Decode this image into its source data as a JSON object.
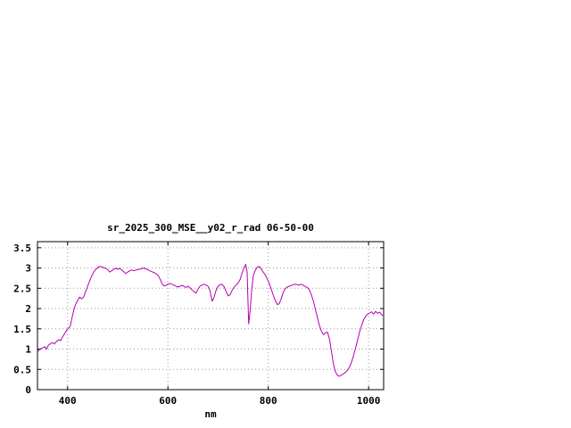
{
  "page": {
    "background_color": "#ffffff"
  },
  "chart_data": {
    "type": "line",
    "title": "sr_2025_300_MSE__y02_r_rad 06-50-00",
    "xlabel": "nm",
    "ylabel": "",
    "xlim": [
      340,
      1030
    ],
    "ylim": [
      0,
      3.65
    ],
    "xtick_values": [
      400,
      600,
      800,
      1000
    ],
    "xtick_labels": [
      "400",
      "600",
      "800",
      "1000"
    ],
    "ytick_values": [
      0,
      0.5,
      1,
      1.5,
      2,
      2.5,
      3,
      3.5
    ],
    "ytick_labels": [
      "0",
      "0.5",
      "1",
      "1.5",
      "2",
      "2.5",
      "3",
      "3.5"
    ],
    "grid": true,
    "legend_position": "none",
    "line_color": "#b400b4",
    "border_color": "#000000",
    "grid_color": "#9a9a9a",
    "series": [
      {
        "name": "sr_2025_300_MSE__y02_r_rad 06-50-00",
        "points": [
          [
            340,
            0.93
          ],
          [
            345,
            1.0
          ],
          [
            350,
            1.03
          ],
          [
            355,
            1.06
          ],
          [
            358,
            1.0
          ],
          [
            362,
            1.1
          ],
          [
            366,
            1.13
          ],
          [
            370,
            1.16
          ],
          [
            374,
            1.13
          ],
          [
            378,
            1.19
          ],
          [
            382,
            1.23
          ],
          [
            386,
            1.21
          ],
          [
            390,
            1.3
          ],
          [
            394,
            1.38
          ],
          [
            398,
            1.46
          ],
          [
            402,
            1.52
          ],
          [
            405,
            1.56
          ],
          [
            408,
            1.72
          ],
          [
            412,
            1.95
          ],
          [
            416,
            2.1
          ],
          [
            420,
            2.2
          ],
          [
            424,
            2.28
          ],
          [
            428,
            2.24
          ],
          [
            432,
            2.28
          ],
          [
            436,
            2.42
          ],
          [
            440,
            2.55
          ],
          [
            444,
            2.68
          ],
          [
            448,
            2.8
          ],
          [
            452,
            2.9
          ],
          [
            456,
            2.96
          ],
          [
            460,
            3.01
          ],
          [
            464,
            3.04
          ],
          [
            468,
            3.03
          ],
          [
            472,
            3.01
          ],
          [
            476,
            2.99
          ],
          [
            480,
            2.96
          ],
          [
            484,
            2.9
          ],
          [
            488,
            2.93
          ],
          [
            492,
            2.97
          ],
          [
            496,
            2.99
          ],
          [
            500,
            2.97
          ],
          [
            504,
            2.99
          ],
          [
            508,
            2.95
          ],
          [
            512,
            2.91
          ],
          [
            516,
            2.86
          ],
          [
            520,
            2.9
          ],
          [
            524,
            2.93
          ],
          [
            528,
            2.95
          ],
          [
            532,
            2.93
          ],
          [
            536,
            2.95
          ],
          [
            540,
            2.96
          ],
          [
            544,
            2.97
          ],
          [
            548,
            2.99
          ],
          [
            552,
            3.0
          ],
          [
            556,
            2.98
          ],
          [
            560,
            2.96
          ],
          [
            564,
            2.93
          ],
          [
            568,
            2.91
          ],
          [
            572,
            2.89
          ],
          [
            576,
            2.86
          ],
          [
            580,
            2.82
          ],
          [
            584,
            2.74
          ],
          [
            588,
            2.62
          ],
          [
            592,
            2.56
          ],
          [
            596,
            2.57
          ],
          [
            600,
            2.6
          ],
          [
            604,
            2.62
          ],
          [
            608,
            2.6
          ],
          [
            612,
            2.58
          ],
          [
            616,
            2.55
          ],
          [
            620,
            2.53
          ],
          [
            624,
            2.55
          ],
          [
            628,
            2.57
          ],
          [
            632,
            2.55
          ],
          [
            636,
            2.52
          ],
          [
            640,
            2.55
          ],
          [
            644,
            2.51
          ],
          [
            648,
            2.46
          ],
          [
            652,
            2.42
          ],
          [
            656,
            2.38
          ],
          [
            660,
            2.48
          ],
          [
            664,
            2.55
          ],
          [
            668,
            2.58
          ],
          [
            672,
            2.6
          ],
          [
            676,
            2.58
          ],
          [
            680,
            2.55
          ],
          [
            684,
            2.44
          ],
          [
            688,
            2.18
          ],
          [
            692,
            2.28
          ],
          [
            696,
            2.45
          ],
          [
            700,
            2.55
          ],
          [
            704,
            2.59
          ],
          [
            708,
            2.6
          ],
          [
            712,
            2.54
          ],
          [
            716,
            2.42
          ],
          [
            720,
            2.31
          ],
          [
            724,
            2.34
          ],
          [
            728,
            2.45
          ],
          [
            732,
            2.53
          ],
          [
            736,
            2.58
          ],
          [
            740,
            2.63
          ],
          [
            744,
            2.72
          ],
          [
            748,
            2.88
          ],
          [
            752,
            3.02
          ],
          [
            755,
            3.09
          ],
          [
            758,
            2.9
          ],
          [
            761,
            1.62
          ],
          [
            764,
            1.95
          ],
          [
            767,
            2.45
          ],
          [
            770,
            2.8
          ],
          [
            774,
            2.94
          ],
          [
            778,
            3.02
          ],
          [
            782,
            3.04
          ],
          [
            786,
            2.98
          ],
          [
            790,
            2.9
          ],
          [
            794,
            2.83
          ],
          [
            798,
            2.73
          ],
          [
            802,
            2.62
          ],
          [
            806,
            2.48
          ],
          [
            810,
            2.33
          ],
          [
            814,
            2.2
          ],
          [
            818,
            2.1
          ],
          [
            822,
            2.12
          ],
          [
            826,
            2.25
          ],
          [
            830,
            2.4
          ],
          [
            834,
            2.49
          ],
          [
            838,
            2.53
          ],
          [
            842,
            2.55
          ],
          [
            846,
            2.57
          ],
          [
            850,
            2.59
          ],
          [
            854,
            2.6
          ],
          [
            858,
            2.59
          ],
          [
            862,
            2.58
          ],
          [
            866,
            2.6
          ],
          [
            870,
            2.57
          ],
          [
            874,
            2.54
          ],
          [
            878,
            2.52
          ],
          [
            882,
            2.46
          ],
          [
            886,
            2.34
          ],
          [
            890,
            2.18
          ],
          [
            894,
            1.98
          ],
          [
            898,
            1.78
          ],
          [
            902,
            1.58
          ],
          [
            906,
            1.44
          ],
          [
            910,
            1.36
          ],
          [
            914,
            1.4
          ],
          [
            918,
            1.42
          ],
          [
            922,
            1.25
          ],
          [
            926,
            0.95
          ],
          [
            930,
            0.62
          ],
          [
            934,
            0.44
          ],
          [
            938,
            0.35
          ],
          [
            942,
            0.33
          ],
          [
            946,
            0.36
          ],
          [
            950,
            0.39
          ],
          [
            954,
            0.43
          ],
          [
            958,
            0.48
          ],
          [
            962,
            0.56
          ],
          [
            966,
            0.68
          ],
          [
            970,
            0.84
          ],
          [
            974,
            1.02
          ],
          [
            978,
            1.22
          ],
          [
            982,
            1.42
          ],
          [
            986,
            1.58
          ],
          [
            990,
            1.72
          ],
          [
            994,
            1.81
          ],
          [
            998,
            1.86
          ],
          [
            1002,
            1.89
          ],
          [
            1006,
            1.92
          ],
          [
            1010,
            1.86
          ],
          [
            1014,
            1.93
          ],
          [
            1018,
            1.88
          ],
          [
            1022,
            1.91
          ],
          [
            1026,
            1.85
          ],
          [
            1030,
            1.82
          ]
        ]
      }
    ]
  }
}
